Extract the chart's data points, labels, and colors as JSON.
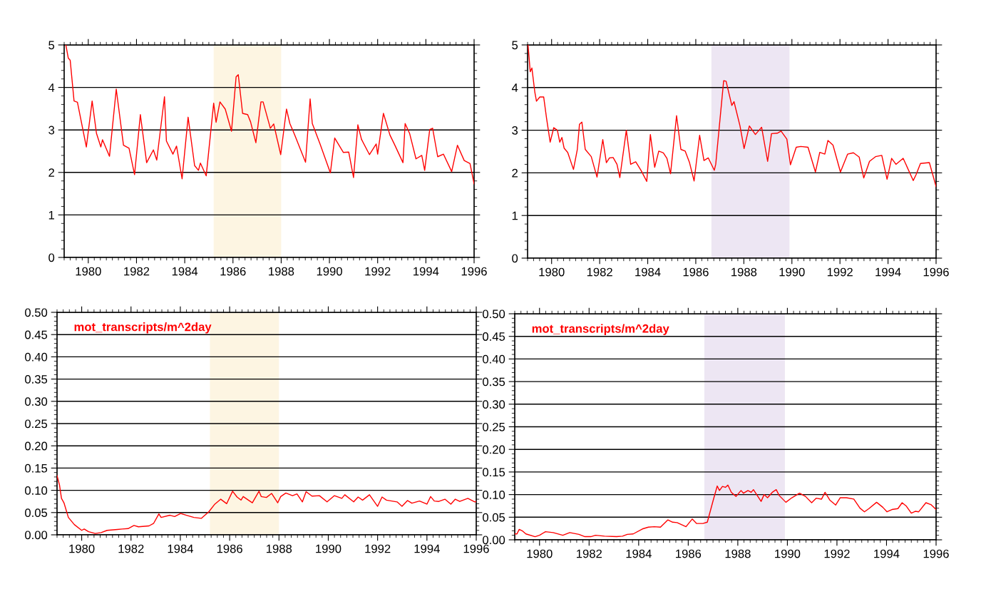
{
  "chart_data": [
    {
      "type": "line",
      "xlim": [
        1979,
        1996
      ],
      "xticks": [
        1980,
        1982,
        1984,
        1986,
        1988,
        1990,
        1992,
        1994,
        1996
      ],
      "ylim": [
        0,
        5
      ],
      "yticks": [
        0,
        1,
        2,
        3,
        4,
        5
      ],
      "grid": "y",
      "marker": "none",
      "line_style": "solid",
      "bands": [
        {
          "axis": "x",
          "from": 1985.2,
          "to": 1988.0,
          "color": "#fdf5e2"
        }
      ],
      "series": [
        {
          "color": "#ff0000",
          "x": [
            1979.07,
            1979.17,
            1979.25,
            1979.41,
            1979.55,
            1979.92,
            1980.16,
            1980.34,
            1980.52,
            1980.59,
            1980.88,
            1981.16,
            1981.46,
            1981.69,
            1981.92,
            1982.16,
            1982.42,
            1982.7,
            1982.84,
            1983.16,
            1983.24,
            1983.51,
            1983.66,
            1983.89,
            1984.14,
            1984.41,
            1984.57,
            1984.65,
            1984.89,
            1985.2,
            1985.3,
            1985.46,
            1985.68,
            1985.94,
            1986.13,
            1986.22,
            1986.4,
            1986.61,
            1986.73,
            1986.95,
            1987.16,
            1987.25,
            1987.55,
            1987.69,
            1987.98,
            1988.22,
            1988.36,
            1988.54,
            1989.01,
            1989.2,
            1989.29,
            1989.61,
            1990.04,
            1990.22,
            1990.58,
            1990.8,
            1991.0,
            1991.18,
            1991.33,
            1991.66,
            1991.94,
            1992.0,
            1992.24,
            1992.51,
            1992.69,
            1993.05,
            1993.14,
            1993.33,
            1993.59,
            1993.83,
            1993.95,
            1994.16,
            1994.28,
            1994.49,
            1994.73,
            1995.07,
            1995.31,
            1995.59,
            1995.83,
            1996.0
          ],
          "values": [
            5.0,
            4.69,
            4.64,
            3.68,
            3.65,
            2.6,
            3.68,
            2.92,
            2.6,
            2.77,
            2.38,
            3.96,
            2.64,
            2.57,
            1.95,
            3.36,
            2.23,
            2.53,
            2.29,
            3.78,
            2.74,
            2.43,
            2.62,
            1.85,
            3.3,
            2.16,
            2.05,
            2.22,
            1.92,
            3.63,
            3.18,
            3.66,
            3.49,
            2.97,
            4.25,
            4.3,
            3.39,
            3.36,
            3.19,
            2.7,
            3.66,
            3.66,
            3.04,
            3.14,
            2.42,
            3.49,
            3.15,
            2.91,
            2.24,
            3.73,
            3.15,
            2.67,
            1.99,
            2.81,
            2.47,
            2.48,
            1.88,
            3.12,
            2.78,
            2.42,
            2.67,
            2.43,
            3.39,
            2.88,
            2.67,
            2.23,
            3.15,
            2.91,
            2.32,
            2.4,
            2.05,
            3.01,
            3.04,
            2.37,
            2.43,
            2.02,
            2.64,
            2.28,
            2.21,
            1.73
          ]
        }
      ]
    },
    {
      "type": "line",
      "xlim": [
        1979,
        1996
      ],
      "xticks": [
        1980,
        1982,
        1984,
        1986,
        1988,
        1990,
        1992,
        1994,
        1996
      ],
      "ylim": [
        0,
        5
      ],
      "yticks": [
        0,
        1,
        2,
        3,
        4,
        5
      ],
      "grid": "y",
      "marker": "none",
      "line_style": "solid",
      "bands": [
        {
          "axis": "x",
          "from": 1986.65,
          "to": 1989.9,
          "color": "#ede6f3"
        }
      ],
      "series": [
        {
          "color": "#ff0000",
          "x": [
            1979.02,
            1979.11,
            1979.18,
            1979.3,
            1979.37,
            1979.51,
            1979.67,
            1979.79,
            1979.94,
            1980.09,
            1980.24,
            1980.34,
            1980.43,
            1980.52,
            1980.67,
            1980.91,
            1981.07,
            1981.16,
            1981.26,
            1981.4,
            1981.65,
            1981.89,
            1982.13,
            1982.28,
            1982.41,
            1982.56,
            1982.72,
            1982.84,
            1983.11,
            1983.29,
            1983.5,
            1983.72,
            1983.96,
            1984.11,
            1984.29,
            1984.46,
            1984.65,
            1984.8,
            1984.95,
            1985.2,
            1985.38,
            1985.56,
            1985.74,
            1985.93,
            1986.16,
            1986.34,
            1986.52,
            1986.77,
            1986.83,
            1987.16,
            1987.26,
            1987.5,
            1987.59,
            1987.84,
            1988.01,
            1988.23,
            1988.48,
            1988.74,
            1988.99,
            1989.15,
            1989.39,
            1989.55,
            1989.79,
            1989.94,
            1990.18,
            1990.37,
            1990.67,
            1990.98,
            1991.16,
            1991.37,
            1991.5,
            1991.71,
            1992.02,
            1992.32,
            1992.56,
            1992.8,
            1992.99,
            1993.23,
            1993.48,
            1993.74,
            1993.96,
            1994.15,
            1994.33,
            1994.63,
            1995.05,
            1995.17,
            1995.35,
            1995.72,
            1996.0
          ],
          "values": [
            5.0,
            4.37,
            4.46,
            3.9,
            3.68,
            3.78,
            3.78,
            3.28,
            2.72,
            3.06,
            3.0,
            2.72,
            2.83,
            2.58,
            2.48,
            2.08,
            2.55,
            3.14,
            3.19,
            2.55,
            2.38,
            1.9,
            2.78,
            2.24,
            2.35,
            2.36,
            2.2,
            1.89,
            3.0,
            2.2,
            2.26,
            2.06,
            1.8,
            2.9,
            2.13,
            2.51,
            2.47,
            2.34,
            1.98,
            3.34,
            2.55,
            2.51,
            2.24,
            1.81,
            2.88,
            2.29,
            2.35,
            2.06,
            2.2,
            4.16,
            4.15,
            3.58,
            3.67,
            3.1,
            2.57,
            3.1,
            2.9,
            3.07,
            2.27,
            2.92,
            2.93,
            2.98,
            2.79,
            2.19,
            2.6,
            2.62,
            2.6,
            2.02,
            2.48,
            2.44,
            2.76,
            2.65,
            2.02,
            2.44,
            2.47,
            2.37,
            1.88,
            2.27,
            2.38,
            2.41,
            1.85,
            2.34,
            2.2,
            2.34,
            1.82,
            1.96,
            2.22,
            2.24,
            1.68
          ]
        }
      ]
    },
    {
      "type": "line",
      "xlim": [
        1979,
        1996
      ],
      "xticks": [
        1980,
        1982,
        1984,
        1986,
        1988,
        1990,
        1992,
        1994,
        1996
      ],
      "ylim": [
        0,
        0.5
      ],
      "yticks": [
        {
          "value": 0,
          "label": "0.00"
        },
        {
          "value": 0.05,
          "label": "0.05"
        },
        {
          "value": 0.1,
          "label": "0.10"
        },
        {
          "value": 0.15,
          "label": "0.15"
        },
        {
          "value": 0.2,
          "label": "0.20"
        },
        {
          "value": 0.25,
          "label": "0.25"
        },
        {
          "value": 0.3,
          "label": "0.30"
        },
        {
          "value": 0.35,
          "label": "0.35"
        },
        {
          "value": 0.4,
          "label": "0.40"
        },
        {
          "value": 0.45,
          "label": "0.45"
        },
        {
          "value": 0.5,
          "label": "0.50"
        }
      ],
      "grid": "y",
      "marker": "none",
      "line_style": "solid",
      "annotations": [
        "mot_transcripts/m^2day"
      ],
      "bands": [
        {
          "axis": "x",
          "from": 1985.2,
          "to": 1988.0,
          "color": "#fdf5e2"
        }
      ],
      "series": [
        {
          "color": "#ff0000",
          "x": [
            1979.0,
            1979.1,
            1979.18,
            1979.28,
            1979.46,
            1979.7,
            1980.0,
            1980.1,
            1980.28,
            1980.55,
            1980.79,
            1981.03,
            1981.45,
            1981.64,
            1981.88,
            1982.12,
            1982.3,
            1982.73,
            1982.92,
            1983.13,
            1983.22,
            1983.58,
            1983.77,
            1984.01,
            1984.25,
            1984.55,
            1984.85,
            1985.16,
            1985.4,
            1985.64,
            1985.88,
            1986.12,
            1986.3,
            1986.46,
            1986.55,
            1986.92,
            1987.19,
            1987.28,
            1987.49,
            1987.7,
            1987.95,
            1988.07,
            1988.28,
            1988.55,
            1988.73,
            1988.95,
            1989.1,
            1989.34,
            1989.64,
            1989.95,
            1990.25,
            1990.55,
            1990.67,
            1991.03,
            1991.21,
            1991.39,
            1991.67,
            1992.0,
            1992.18,
            1992.36,
            1992.79,
            1992.99,
            1993.21,
            1993.39,
            1993.7,
            1994.0,
            1994.15,
            1994.3,
            1994.48,
            1994.73,
            1994.97,
            1995.15,
            1995.33,
            1995.66,
            1995.94,
            1996.0
          ],
          "values": [
            0.133,
            0.112,
            0.082,
            0.072,
            0.039,
            0.023,
            0.01,
            0.013,
            0.007,
            0.003,
            0.005,
            0.01,
            0.012,
            0.013,
            0.014,
            0.021,
            0.018,
            0.02,
            0.026,
            0.047,
            0.039,
            0.044,
            0.041,
            0.048,
            0.044,
            0.039,
            0.037,
            0.052,
            0.069,
            0.08,
            0.07,
            0.098,
            0.085,
            0.078,
            0.086,
            0.072,
            0.098,
            0.086,
            0.084,
            0.093,
            0.072,
            0.086,
            0.094,
            0.088,
            0.092,
            0.074,
            0.097,
            0.087,
            0.088,
            0.074,
            0.088,
            0.082,
            0.09,
            0.074,
            0.085,
            0.078,
            0.09,
            0.064,
            0.085,
            0.078,
            0.074,
            0.064,
            0.077,
            0.071,
            0.076,
            0.069,
            0.086,
            0.076,
            0.075,
            0.08,
            0.069,
            0.08,
            0.075,
            0.082,
            0.074,
            0.075
          ]
        }
      ]
    },
    {
      "type": "line",
      "xlim": [
        1979,
        1996
      ],
      "xticks": [
        1980,
        1982,
        1984,
        1986,
        1988,
        1990,
        1992,
        1994,
        1996
      ],
      "ylim": [
        0,
        0.5
      ],
      "yticks": [
        {
          "value": 0,
          "label": "0.00"
        },
        {
          "value": 0.05,
          "label": "0.05"
        },
        {
          "value": 0.1,
          "label": "0.10"
        },
        {
          "value": 0.15,
          "label": "0.15"
        },
        {
          "value": 0.2,
          "label": "0.20"
        },
        {
          "value": 0.25,
          "label": "0.25"
        },
        {
          "value": 0.3,
          "label": "0.30"
        },
        {
          "value": 0.35,
          "label": "0.35"
        },
        {
          "value": 0.4,
          "label": "0.40"
        },
        {
          "value": 0.45,
          "label": "0.45"
        },
        {
          "value": 0.5,
          "label": "0.50"
        }
      ],
      "grid": "y",
      "marker": "none",
      "line_style": "solid",
      "annotations": [
        "mot_transcripts/m^2day"
      ],
      "bands": [
        {
          "axis": "x",
          "from": 1986.65,
          "to": 1989.9,
          "color": "#ede6f3"
        }
      ],
      "series": [
        {
          "color": "#ff0000",
          "x": [
            1979.0,
            1979.09,
            1979.18,
            1979.3,
            1979.45,
            1979.82,
            1980.0,
            1980.24,
            1980.55,
            1980.94,
            1981.22,
            1981.59,
            1981.83,
            1982.07,
            1982.26,
            1982.62,
            1983.11,
            1983.35,
            1983.54,
            1983.78,
            1984.15,
            1984.39,
            1984.63,
            1984.88,
            1985.18,
            1985.37,
            1985.55,
            1985.91,
            1986.16,
            1986.34,
            1986.59,
            1986.77,
            1987.01,
            1987.17,
            1987.26,
            1987.38,
            1987.5,
            1987.6,
            1987.74,
            1987.93,
            1988.13,
            1988.23,
            1988.41,
            1988.54,
            1988.63,
            1988.94,
            1989.06,
            1989.2,
            1989.39,
            1989.55,
            1989.67,
            1989.94,
            1990.18,
            1990.49,
            1990.73,
            1990.98,
            1991.16,
            1991.38,
            1991.52,
            1991.71,
            1991.95,
            1992.13,
            1992.38,
            1992.68,
            1992.93,
            1993.11,
            1993.29,
            1993.6,
            1993.85,
            1994.02,
            1994.22,
            1994.46,
            1994.63,
            1994.79,
            1995.0,
            1995.16,
            1995.3,
            1995.59,
            1995.79,
            1996.0
          ],
          "values": [
            0.013,
            0.013,
            0.023,
            0.02,
            0.013,
            0.007,
            0.01,
            0.018,
            0.016,
            0.01,
            0.016,
            0.012,
            0.007,
            0.007,
            0.01,
            0.008,
            0.007,
            0.008,
            0.012,
            0.013,
            0.024,
            0.028,
            0.029,
            0.028,
            0.044,
            0.039,
            0.038,
            0.029,
            0.046,
            0.036,
            0.036,
            0.039,
            0.088,
            0.119,
            0.109,
            0.118,
            0.116,
            0.121,
            0.105,
            0.096,
            0.109,
            0.103,
            0.109,
            0.105,
            0.111,
            0.085,
            0.1,
            0.093,
            0.105,
            0.111,
            0.098,
            0.083,
            0.093,
            0.103,
            0.096,
            0.082,
            0.092,
            0.09,
            0.105,
            0.088,
            0.077,
            0.093,
            0.093,
            0.09,
            0.07,
            0.062,
            0.069,
            0.083,
            0.072,
            0.062,
            0.067,
            0.069,
            0.082,
            0.075,
            0.059,
            0.063,
            0.062,
            0.082,
            0.078,
            0.067
          ]
        }
      ]
    }
  ]
}
